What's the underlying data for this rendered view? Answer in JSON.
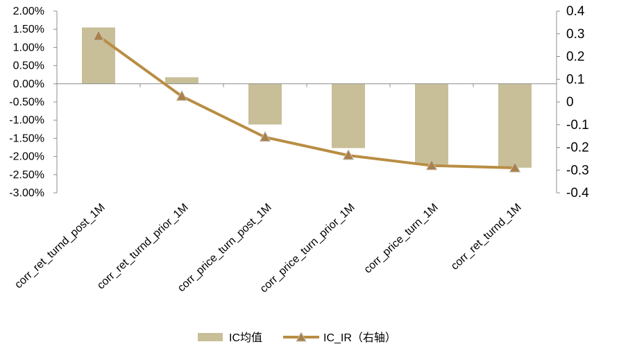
{
  "chart_data": {
    "type": "bar",
    "categories": [
      "corr_ret_turnd_post_1M",
      "corr_ret_turnd_prior_1M",
      "corr_price_turn_post_1M",
      "corr_price_turn_prior_1M",
      "corr_price_turn_1M",
      "corr_ret_turnd_1M"
    ],
    "series": [
      {
        "name": "IC均值",
        "type": "bar",
        "axis": "left",
        "color": "#c8bf99",
        "values": [
          0.0155,
          0.0018,
          -0.0112,
          -0.0177,
          -0.0222,
          -0.0231
        ]
      },
      {
        "name": "IC_IR（右轴）",
        "type": "line",
        "axis": "right",
        "color": "#b98d44",
        "marker": "triangle",
        "values": [
          0.29,
          0.025,
          -0.155,
          -0.235,
          -0.28,
          -0.29
        ]
      }
    ],
    "y_left": {
      "range": [
        -0.03,
        0.02
      ],
      "ticks": [
        0.02,
        0.015,
        0.01,
        0.005,
        0.0,
        -0.005,
        -0.01,
        -0.015,
        -0.02,
        -0.025,
        -0.03
      ],
      "tick_labels": [
        "2.00%",
        "1.50%",
        "1.00%",
        "0.50%",
        "0.00%",
        "-0.50%",
        "-1.00%",
        "-1.50%",
        "-2.00%",
        "-2.50%",
        "-3.00%"
      ]
    },
    "y_right": {
      "range": [
        -0.4,
        0.4
      ],
      "ticks": [
        0.4,
        0.3,
        0.2,
        0.1,
        0,
        -0.1,
        -0.2,
        -0.3,
        -0.4
      ],
      "tick_labels": [
        "0.4",
        "0.3",
        "0.2",
        "0.1",
        "0",
        "-0.1",
        "-0.2",
        "-0.3",
        "-0.4"
      ]
    },
    "grid": false,
    "legend": {
      "position": "bottom",
      "entries": [
        "IC均值",
        "IC_IR（右轴）"
      ]
    }
  }
}
